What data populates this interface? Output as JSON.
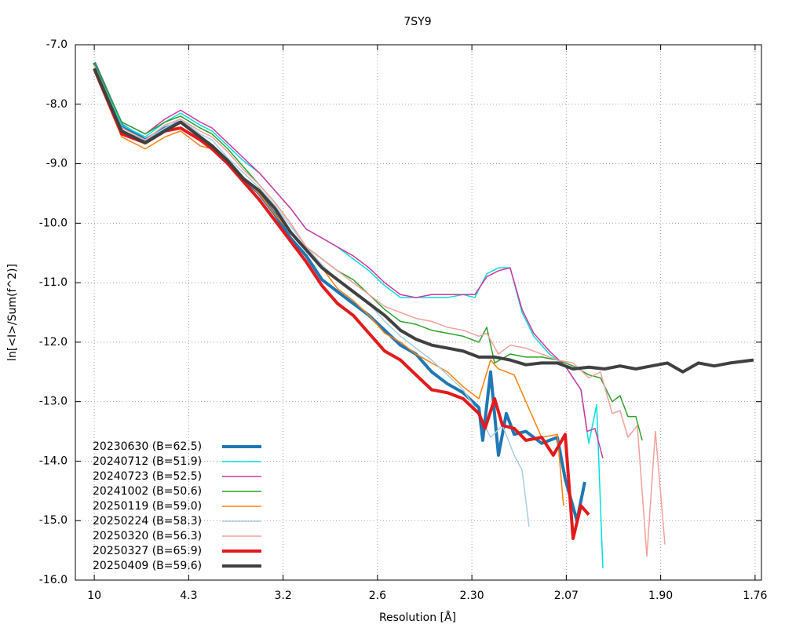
{
  "chart_data": {
    "type": "line",
    "title": "7SY9",
    "xlabel": "Resolution [Å]",
    "ylabel": "ln[<I>/Sum(f^2)]",
    "xlim": [
      0.0011,
      0.3238
    ],
    "ylim": [
      -16,
      -7
    ],
    "xticks": [
      {
        "value": 0.01,
        "label": "10"
      },
      {
        "value": 0.0544,
        "label": "4.3"
      },
      {
        "value": 0.0988,
        "label": "3.2"
      },
      {
        "value": 0.1432,
        "label": "2.6"
      },
      {
        "value": 0.1876,
        "label": "2.30"
      },
      {
        "value": 0.232,
        "label": "2.07"
      },
      {
        "value": 0.2764,
        "label": "1.90"
      },
      {
        "value": 0.3208,
        "label": "1.76"
      }
    ],
    "yticks": [
      {
        "value": -16,
        "label": "-16.0"
      },
      {
        "value": -15,
        "label": "-15.0"
      },
      {
        "value": -14,
        "label": "-14.0"
      },
      {
        "value": -13,
        "label": "-13.0"
      },
      {
        "value": -12,
        "label": "-12.0"
      },
      {
        "value": -11,
        "label": "-11.0"
      },
      {
        "value": -10,
        "label": "-10.0"
      },
      {
        "value": -9,
        "label": "-9.0"
      },
      {
        "value": -8,
        "label": "-8.0"
      },
      {
        "value": -7,
        "label": "-7.0"
      }
    ],
    "grid": true,
    "legend": "lower left",
    "series": [
      {
        "name": "20230630 (B=62.5)",
        "color": "#1f77b4",
        "line_width": 4,
        "x": [
          0.01,
          0.0229,
          0.034,
          0.0432,
          0.0506,
          0.0598,
          0.0654,
          0.0728,
          0.0801,
          0.0875,
          0.0949,
          0.1023,
          0.1097,
          0.1171,
          0.1244,
          0.1318,
          0.1392,
          0.1466,
          0.154,
          0.1613,
          0.1687,
          0.1761,
          0.1835,
          0.1909,
          0.1927,
          0.1964,
          0.2001,
          0.2038,
          0.2075,
          0.213,
          0.2204,
          0.2278,
          0.2315,
          0.237,
          0.2407
        ],
        "values": [
          -7.3,
          -8.35,
          -8.6,
          -8.4,
          -8.3,
          -8.55,
          -8.7,
          -8.95,
          -9.25,
          -9.5,
          -9.85,
          -10.25,
          -10.55,
          -10.95,
          -11.15,
          -11.35,
          -11.55,
          -11.8,
          -12.05,
          -12.2,
          -12.5,
          -12.7,
          -12.85,
          -13.1,
          -13.65,
          -12.5,
          -13.9,
          -13.2,
          -13.55,
          -13.5,
          -13.7,
          -13.6,
          -14.3,
          -15.0,
          -14.35
        ]
      },
      {
        "name": "20240712 (B=51.9)",
        "color": "#00e0e0",
        "line_width": 1.5,
        "x": [
          0.01,
          0.0229,
          0.034,
          0.0432,
          0.0506,
          0.0598,
          0.0654,
          0.0728,
          0.0801,
          0.0875,
          0.0949,
          0.1023,
          0.1097,
          0.1171,
          0.1244,
          0.1318,
          0.1392,
          0.1466,
          0.154,
          0.1613,
          0.1687,
          0.1761,
          0.1835,
          0.189,
          0.1946,
          0.2001,
          0.2056,
          0.2112,
          0.2167,
          0.2241,
          0.2315,
          0.2389,
          0.2426,
          0.2463,
          0.2492
        ],
        "values": [
          -7.3,
          -8.35,
          -8.55,
          -8.3,
          -8.15,
          -8.35,
          -8.45,
          -8.7,
          -8.95,
          -9.15,
          -9.45,
          -9.75,
          -10.1,
          -10.25,
          -10.4,
          -10.6,
          -10.8,
          -11.05,
          -11.25,
          -11.25,
          -11.25,
          -11.25,
          -11.2,
          -11.25,
          -10.85,
          -10.75,
          -10.75,
          -11.5,
          -11.9,
          -12.2,
          -12.4,
          -12.8,
          -13.7,
          -13.05,
          -15.8
        ]
      },
      {
        "name": "20240723 (B=52.5)",
        "color": "#d6339e",
        "line_width": 1.5,
        "x": [
          0.01,
          0.0229,
          0.034,
          0.0432,
          0.0506,
          0.0598,
          0.0654,
          0.0728,
          0.0801,
          0.0875,
          0.0949,
          0.1023,
          0.1097,
          0.1171,
          0.1244,
          0.1318,
          0.1392,
          0.1466,
          0.154,
          0.1613,
          0.1687,
          0.1761,
          0.1835,
          0.189,
          0.1946,
          0.2001,
          0.2056,
          0.2112,
          0.2167,
          0.2241,
          0.2315,
          0.2389,
          0.2418,
          0.2455,
          0.2492
        ],
        "values": [
          -7.3,
          -8.3,
          -8.5,
          -8.25,
          -8.1,
          -8.3,
          -8.4,
          -8.65,
          -8.9,
          -9.15,
          -9.45,
          -9.75,
          -10.1,
          -10.25,
          -10.4,
          -10.55,
          -10.75,
          -11.0,
          -11.2,
          -11.25,
          -11.2,
          -11.2,
          -11.2,
          -11.2,
          -10.9,
          -10.8,
          -10.75,
          -11.45,
          -11.85,
          -12.15,
          -12.4,
          -12.8,
          -13.5,
          -13.45,
          -13.95
        ]
      },
      {
        "name": "20241002 (B=50.6)",
        "color": "#2ca02c",
        "line_width": 1.5,
        "x": [
          0.01,
          0.0229,
          0.034,
          0.0432,
          0.0506,
          0.0598,
          0.0654,
          0.0728,
          0.0801,
          0.0875,
          0.0949,
          0.1023,
          0.1097,
          0.1171,
          0.1244,
          0.1318,
          0.1392,
          0.1466,
          0.154,
          0.1613,
          0.1687,
          0.1761,
          0.1835,
          0.1909,
          0.1946,
          0.1983,
          0.2056,
          0.213,
          0.2204,
          0.2278,
          0.2352,
          0.2426,
          0.2481,
          0.2536,
          0.2573,
          0.261,
          0.2647,
          0.2677
        ],
        "values": [
          -7.3,
          -8.3,
          -8.5,
          -8.3,
          -8.2,
          -8.4,
          -8.5,
          -8.75,
          -9.05,
          -9.35,
          -9.65,
          -10.0,
          -10.4,
          -10.6,
          -10.8,
          -10.95,
          -11.2,
          -11.45,
          -11.65,
          -11.7,
          -11.8,
          -11.85,
          -11.9,
          -12.0,
          -11.75,
          -12.35,
          -12.2,
          -12.25,
          -12.25,
          -12.3,
          -12.4,
          -12.55,
          -12.6,
          -13.0,
          -12.9,
          -13.25,
          -13.25,
          -13.65
        ]
      },
      {
        "name": "20250119 (B=59.0)",
        "color": "#ff7f0e",
        "line_width": 1.5,
        "x": [
          0.01,
          0.0229,
          0.034,
          0.0432,
          0.0506,
          0.0598,
          0.0654,
          0.0728,
          0.0801,
          0.0875,
          0.0949,
          0.1023,
          0.1097,
          0.1171,
          0.1244,
          0.1318,
          0.1392,
          0.1466,
          0.154,
          0.1613,
          0.1687,
          0.1761,
          0.1835,
          0.1909,
          0.1964,
          0.2001,
          0.2075,
          0.213,
          0.2204,
          0.2278,
          0.2307
        ],
        "values": [
          -7.45,
          -8.55,
          -8.75,
          -8.55,
          -8.45,
          -8.7,
          -8.75,
          -9.0,
          -9.25,
          -9.5,
          -9.85,
          -10.15,
          -10.45,
          -10.75,
          -11.1,
          -11.3,
          -11.55,
          -11.85,
          -12.0,
          -12.2,
          -12.35,
          -12.5,
          -12.75,
          -12.95,
          -12.3,
          -12.45,
          -12.55,
          -13.0,
          -13.6,
          -13.55,
          -14.75
        ]
      },
      {
        "name": "20250224 (B=58.3)",
        "color": "#a6cee3",
        "line_width": 1.5,
        "x": [
          0.01,
          0.0229,
          0.034,
          0.0432,
          0.0506,
          0.0598,
          0.0654,
          0.0728,
          0.0801,
          0.0875,
          0.0949,
          0.1023,
          0.1097,
          0.1171,
          0.1244,
          0.1318,
          0.1392,
          0.1466,
          0.154,
          0.1613,
          0.1687,
          0.1761,
          0.1835,
          0.1909,
          0.1964,
          0.202,
          0.2075,
          0.2112,
          0.2145
        ],
        "values": [
          -7.4,
          -8.45,
          -8.6,
          -8.4,
          -8.25,
          -8.5,
          -8.6,
          -8.9,
          -9.15,
          -9.4,
          -9.7,
          -10.05,
          -10.4,
          -10.7,
          -10.95,
          -11.15,
          -11.35,
          -11.65,
          -11.9,
          -12.1,
          -12.3,
          -12.55,
          -12.8,
          -13.2,
          -13.6,
          -13.4,
          -13.9,
          -14.15,
          -15.1
        ]
      },
      {
        "name": "20250320 (B=56.3)",
        "color": "#f4a09c",
        "line_width": 1.5,
        "x": [
          0.01,
          0.0229,
          0.034,
          0.0432,
          0.0506,
          0.0598,
          0.0654,
          0.0728,
          0.0801,
          0.0875,
          0.0949,
          0.1023,
          0.1097,
          0.1171,
          0.1244,
          0.1318,
          0.1392,
          0.1466,
          0.154,
          0.1613,
          0.1687,
          0.1761,
          0.1835,
          0.1909,
          0.1946,
          0.2001,
          0.2056,
          0.213,
          0.2204,
          0.2278,
          0.2352,
          0.2426,
          0.2481,
          0.2536,
          0.2573,
          0.261,
          0.2654,
          0.2699,
          0.2739,
          0.2784
        ],
        "values": [
          -7.35,
          -8.4,
          -8.6,
          -8.35,
          -8.25,
          -8.45,
          -8.55,
          -8.8,
          -9.1,
          -9.35,
          -9.65,
          -10.0,
          -10.4,
          -10.6,
          -10.8,
          -11.0,
          -11.2,
          -11.4,
          -11.5,
          -11.6,
          -11.65,
          -11.75,
          -11.8,
          -11.9,
          -11.85,
          -12.2,
          -12.05,
          -12.1,
          -12.2,
          -12.3,
          -12.35,
          -12.6,
          -12.5,
          -13.2,
          -13.15,
          -13.6,
          -13.4,
          -15.6,
          -13.5,
          -15.4
        ]
      },
      {
        "name": "20250327 (B=65.9)",
        "color": "#e31a1c",
        "line_width": 4,
        "x": [
          0.01,
          0.0229,
          0.034,
          0.0432,
          0.0506,
          0.0598,
          0.0654,
          0.0728,
          0.0801,
          0.0875,
          0.0949,
          0.1023,
          0.1097,
          0.1171,
          0.1244,
          0.1318,
          0.1392,
          0.1466,
          0.154,
          0.1613,
          0.1687,
          0.1761,
          0.1835,
          0.1909,
          0.1938,
          0.1983,
          0.202,
          0.2075,
          0.213,
          0.2204,
          0.2259,
          0.2315,
          0.2352,
          0.2389,
          0.2426
        ],
        "values": [
          -7.4,
          -8.5,
          -8.65,
          -8.45,
          -8.4,
          -8.6,
          -8.75,
          -9.0,
          -9.3,
          -9.6,
          -9.95,
          -10.3,
          -10.65,
          -11.05,
          -11.35,
          -11.55,
          -11.85,
          -12.15,
          -12.3,
          -12.55,
          -12.8,
          -12.85,
          -12.95,
          -13.2,
          -13.45,
          -12.95,
          -13.4,
          -13.45,
          -13.65,
          -13.6,
          -13.9,
          -13.55,
          -15.3,
          -14.75,
          -14.9
        ]
      },
      {
        "name": "20250409 (B=59.6)",
        "color": "#404040",
        "line_width": 4,
        "x": [
          0.01,
          0.0229,
          0.034,
          0.0432,
          0.0506,
          0.0598,
          0.0654,
          0.0728,
          0.0801,
          0.0875,
          0.0949,
          0.1023,
          0.1097,
          0.1171,
          0.1244,
          0.1318,
          0.1392,
          0.1466,
          0.154,
          0.1613,
          0.1687,
          0.1761,
          0.1835,
          0.1909,
          0.1983,
          0.2056,
          0.213,
          0.2204,
          0.2278,
          0.2352,
          0.2426,
          0.25,
          0.2573,
          0.2647,
          0.2721,
          0.2795,
          0.2868,
          0.2942,
          0.3016,
          0.309,
          0.3201
        ],
        "values": [
          -7.4,
          -8.45,
          -8.65,
          -8.45,
          -8.3,
          -8.55,
          -8.7,
          -8.95,
          -9.25,
          -9.45,
          -9.75,
          -10.15,
          -10.45,
          -10.75,
          -10.95,
          -11.15,
          -11.35,
          -11.55,
          -11.8,
          -11.95,
          -12.05,
          -12.1,
          -12.15,
          -12.25,
          -12.25,
          -12.3,
          -12.38,
          -12.35,
          -12.35,
          -12.45,
          -12.42,
          -12.45,
          -12.4,
          -12.45,
          -12.4,
          -12.35,
          -12.5,
          -12.35,
          -12.4,
          -12.35,
          -12.3
        ]
      }
    ]
  }
}
